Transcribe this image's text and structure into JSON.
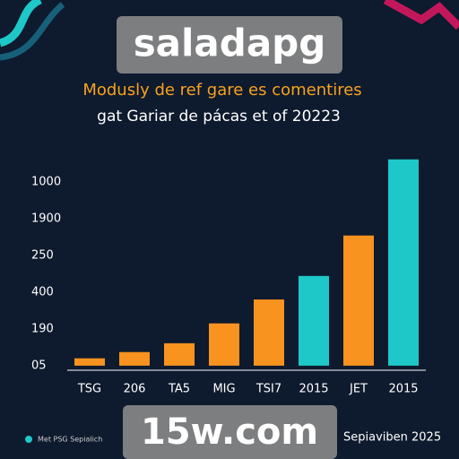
{
  "chart_data": {
    "type": "bar",
    "watermark_top": "saladapg",
    "watermark_bottom": "15w.com",
    "title": "Modusly de ref gare es comentires",
    "subtitle": "gat Gariar de pácas et of 20223",
    "categories": [
      "TSG",
      "206",
      "TA5",
      "MIG",
      "TSI7",
      "2015",
      "JET",
      "2015"
    ],
    "values": [
      0.2,
      0.37,
      0.61,
      1.15,
      1.8,
      2.44,
      3.54,
      5.61
    ],
    "colors": [
      "#f7931e",
      "#f7931e",
      "#f7931e",
      "#f7931e",
      "#f7931e",
      "#1ec8c8",
      "#f7931e",
      "#1ec8c8"
    ],
    "ylim": [
      -0.1,
      5.8
    ],
    "yticks": [
      {
        "value": 0,
        "label": "05"
      },
      {
        "value": 1,
        "label": "190"
      },
      {
        "value": 2,
        "label": "400"
      },
      {
        "value": 3,
        "label": "250"
      },
      {
        "value": 4,
        "label": "1900"
      },
      {
        "value": 5,
        "label": "1000"
      }
    ],
    "grid": false,
    "legend": [
      {
        "name": "Met PSG Sepialich",
        "color": "#1ec8c8"
      }
    ],
    "note": "Sepiaviben 2025"
  }
}
